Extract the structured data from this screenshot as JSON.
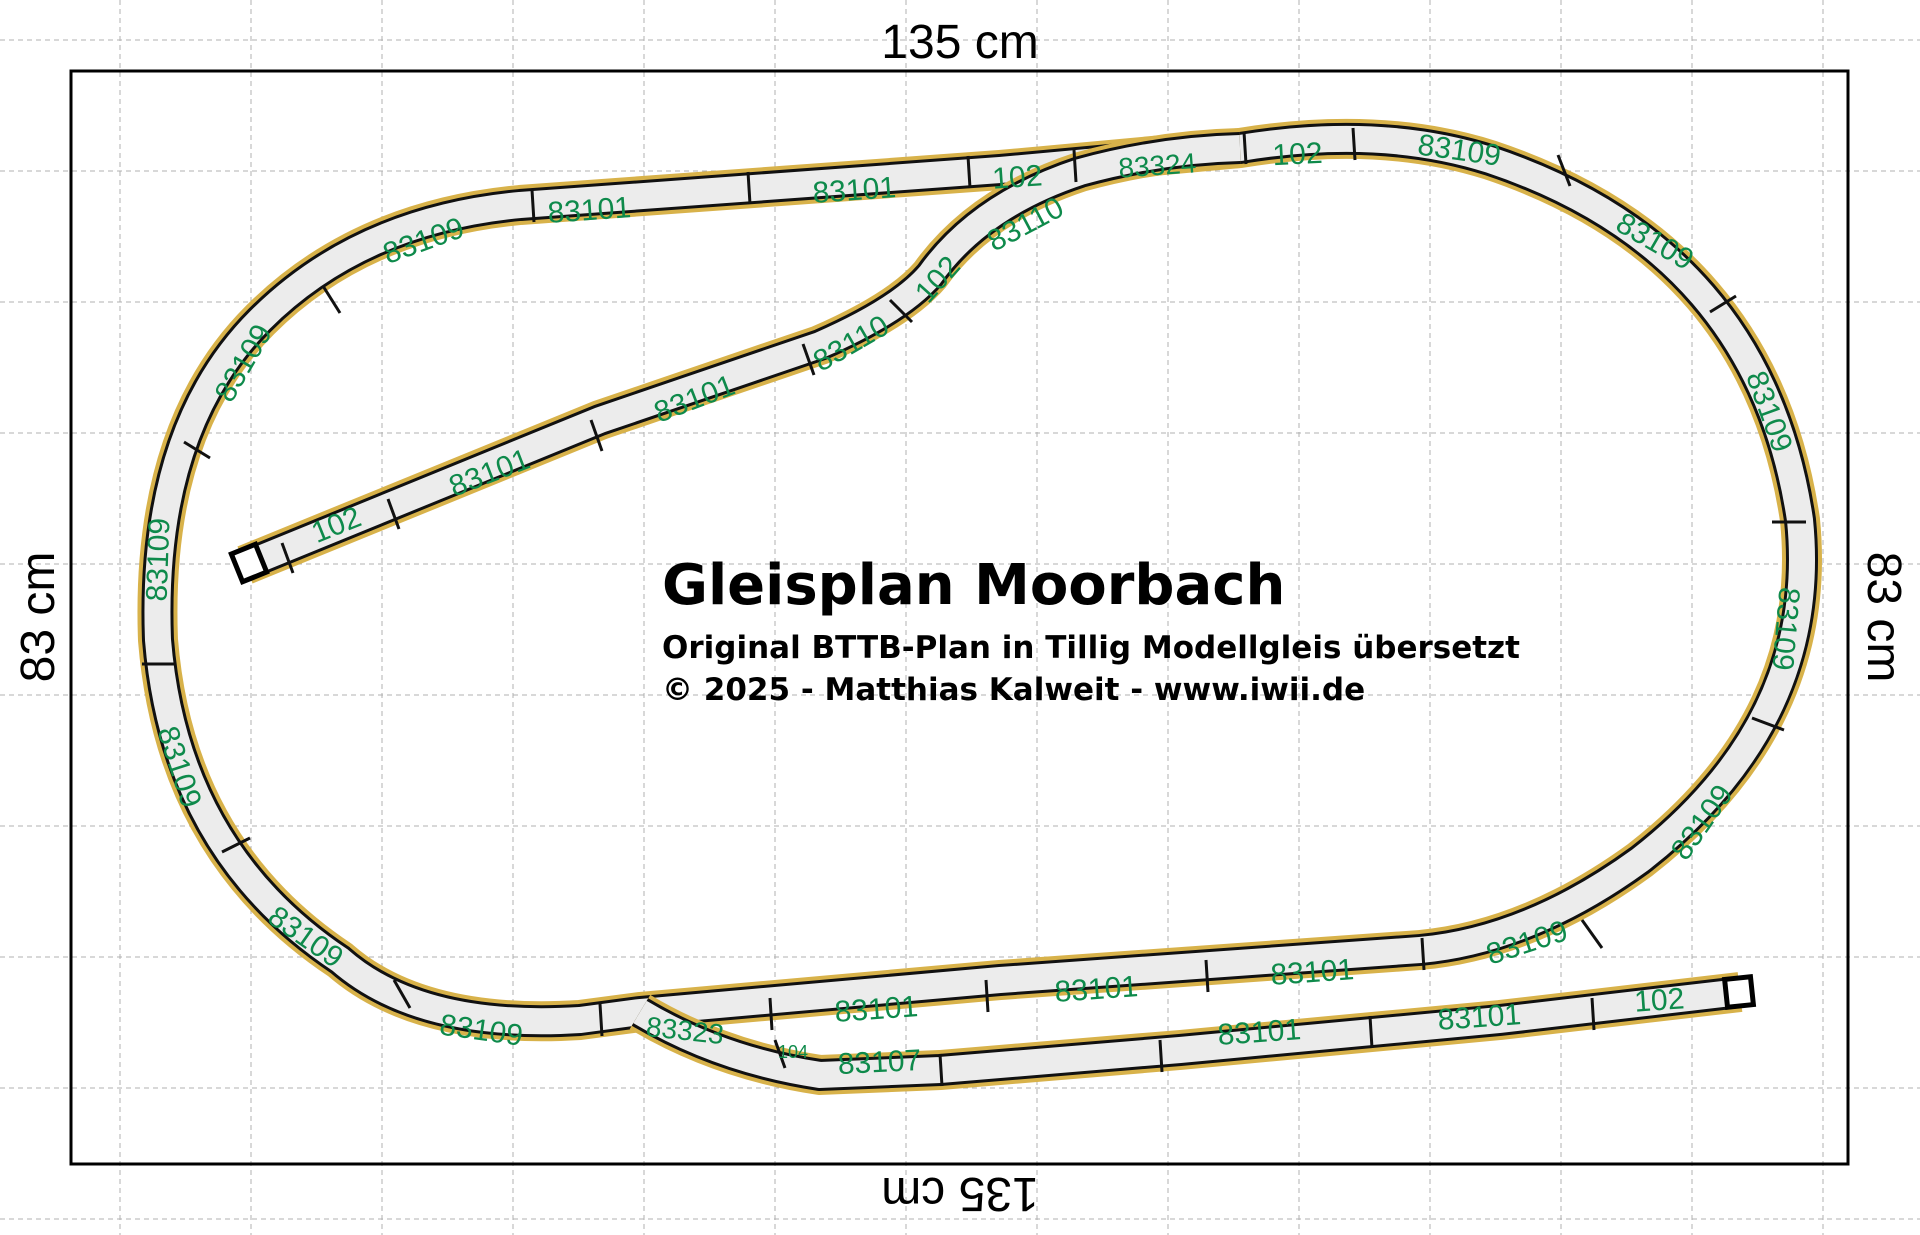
{
  "title": "Gleisplan Moorbach",
  "subtitle": "Original BTTB-Plan in Tillig Modellgleis übersetzt",
  "copyright": "© 2025 - Matthias Kalweit - www.iwii.de",
  "dimensions": {
    "top": "135 cm",
    "bottom": "135 cm",
    "left": "83 cm",
    "right": "83 cm"
  },
  "colors": {
    "track_fill": "#ececec",
    "track_rail": "#111111",
    "ballast_edge": "#d8b24a",
    "label": "#0e8a4b",
    "grid": "#b0b0b0"
  },
  "track_labels": [
    "83101",
    "83101",
    "102",
    "83324",
    "102",
    "83109",
    "83109",
    "83109",
    "83109",
    "83109",
    "83109",
    "83101",
    "83101",
    "83109",
    "83101",
    "83101",
    "83101",
    "102",
    "83107",
    "104",
    "83323",
    "83109",
    "83109",
    "83109",
    "83109",
    "83109",
    "102",
    "83101",
    "83101",
    "83110",
    "102",
    "83110"
  ]
}
